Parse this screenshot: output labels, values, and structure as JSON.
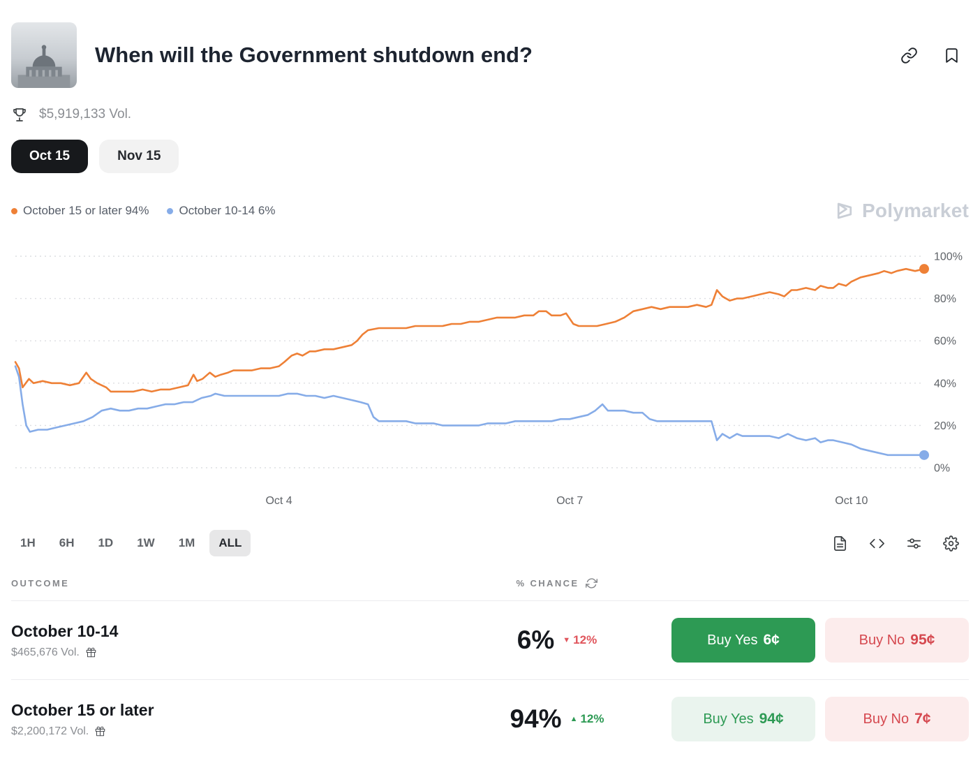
{
  "header": {
    "title": "When will the Government shutdown end?",
    "volume": "$5,919,133 Vol."
  },
  "tabs": [
    {
      "label": "Oct 15"
    },
    {
      "label": "Nov 15"
    }
  ],
  "legend": {
    "items": [
      {
        "label": "October 15 or later 94%"
      },
      {
        "label": "October 10-14 6%"
      }
    ]
  },
  "watermark": "Polymarket",
  "chart_data": {
    "type": "line",
    "ylim": [
      0,
      100
    ],
    "yticks": [
      0,
      20,
      40,
      60,
      80,
      100
    ],
    "xticks": [
      {
        "x": 29,
        "label": "Oct 4"
      },
      {
        "x": 61,
        "label": "Oct 7"
      },
      {
        "x": 92,
        "label": "Oct 10"
      }
    ],
    "grid": "dotted-horizontal",
    "legend_position": "top-left",
    "series": [
      {
        "name": "October 15 or later",
        "color": "#EE8036",
        "points": [
          [
            0,
            50
          ],
          [
            0.4,
            47
          ],
          [
            0.8,
            38
          ],
          [
            1.5,
            42
          ],
          [
            2,
            40
          ],
          [
            3,
            41
          ],
          [
            4,
            40
          ],
          [
            5,
            40
          ],
          [
            6,
            39
          ],
          [
            7,
            40
          ],
          [
            7.8,
            45
          ],
          [
            8.3,
            42
          ],
          [
            9,
            40
          ],
          [
            10,
            38
          ],
          [
            10.5,
            36
          ],
          [
            11.5,
            36
          ],
          [
            13,
            36
          ],
          [
            14,
            37
          ],
          [
            15,
            36
          ],
          [
            16,
            37
          ],
          [
            17,
            37
          ],
          [
            18,
            38
          ],
          [
            19,
            39
          ],
          [
            19.6,
            44
          ],
          [
            20,
            41
          ],
          [
            20.6,
            42
          ],
          [
            21.4,
            45
          ],
          [
            22,
            43
          ],
          [
            22.6,
            44
          ],
          [
            23.4,
            45
          ],
          [
            24,
            46
          ],
          [
            25,
            46
          ],
          [
            26,
            46
          ],
          [
            27,
            47
          ],
          [
            28,
            47
          ],
          [
            29,
            48
          ],
          [
            29.6,
            50
          ],
          [
            30.4,
            53
          ],
          [
            31,
            54
          ],
          [
            31.6,
            53
          ],
          [
            32.4,
            55
          ],
          [
            33,
            55
          ],
          [
            34,
            56
          ],
          [
            35,
            56
          ],
          [
            36,
            57
          ],
          [
            37,
            58
          ],
          [
            37.6,
            60
          ],
          [
            38.2,
            63
          ],
          [
            38.8,
            65
          ],
          [
            40,
            66
          ],
          [
            41,
            66
          ],
          [
            42,
            66
          ],
          [
            43,
            66
          ],
          [
            44,
            67
          ],
          [
            45,
            67
          ],
          [
            46,
            67
          ],
          [
            47,
            67
          ],
          [
            48,
            68
          ],
          [
            49,
            68
          ],
          [
            50,
            69
          ],
          [
            51,
            69
          ],
          [
            52,
            70
          ],
          [
            53,
            71
          ],
          [
            54,
            71
          ],
          [
            55,
            71
          ],
          [
            56,
            72
          ],
          [
            57,
            72
          ],
          [
            57.6,
            74
          ],
          [
            58.4,
            74
          ],
          [
            59,
            72
          ],
          [
            60,
            72
          ],
          [
            60.6,
            73
          ],
          [
            61.4,
            68
          ],
          [
            62,
            67
          ],
          [
            63,
            67
          ],
          [
            64,
            67
          ],
          [
            65,
            68
          ],
          [
            66,
            69
          ],
          [
            67,
            71
          ],
          [
            68,
            74
          ],
          [
            69,
            75
          ],
          [
            70,
            76
          ],
          [
            71,
            75
          ],
          [
            72,
            76
          ],
          [
            73,
            76
          ],
          [
            74,
            76
          ],
          [
            75,
            77
          ],
          [
            76,
            76
          ],
          [
            76.6,
            77
          ],
          [
            77.2,
            84
          ],
          [
            77.8,
            81
          ],
          [
            78.6,
            79
          ],
          [
            79.4,
            80
          ],
          [
            80,
            80
          ],
          [
            81,
            81
          ],
          [
            82,
            82
          ],
          [
            83,
            83
          ],
          [
            84,
            82
          ],
          [
            84.6,
            81
          ],
          [
            85.4,
            84
          ],
          [
            86,
            84
          ],
          [
            87,
            85
          ],
          [
            88,
            84
          ],
          [
            88.6,
            86
          ],
          [
            89.4,
            85
          ],
          [
            90,
            85
          ],
          [
            90.6,
            87
          ],
          [
            91.4,
            86
          ],
          [
            92,
            88
          ],
          [
            93,
            90
          ],
          [
            94,
            91
          ],
          [
            95,
            92
          ],
          [
            95.6,
            93
          ],
          [
            96.4,
            92
          ],
          [
            97,
            93
          ],
          [
            98,
            94
          ],
          [
            99,
            93
          ],
          [
            100,
            94
          ]
        ]
      },
      {
        "name": "October 10-14",
        "color": "#86ACE8",
        "points": [
          [
            0,
            48
          ],
          [
            0.4,
            43
          ],
          [
            0.8,
            30
          ],
          [
            1.2,
            20
          ],
          [
            1.6,
            17
          ],
          [
            2.5,
            18
          ],
          [
            3.5,
            18
          ],
          [
            4.5,
            19
          ],
          [
            5.5,
            20
          ],
          [
            6.5,
            21
          ],
          [
            7.5,
            22
          ],
          [
            8.5,
            24
          ],
          [
            9.5,
            27
          ],
          [
            10.5,
            28
          ],
          [
            11.5,
            27
          ],
          [
            12.5,
            27
          ],
          [
            13.5,
            28
          ],
          [
            14.5,
            28
          ],
          [
            15.5,
            29
          ],
          [
            16.5,
            30
          ],
          [
            17.5,
            30
          ],
          [
            18.5,
            31
          ],
          [
            19.5,
            31
          ],
          [
            20.5,
            33
          ],
          [
            21.5,
            34
          ],
          [
            22,
            35
          ],
          [
            23,
            34
          ],
          [
            24,
            34
          ],
          [
            25,
            34
          ],
          [
            26,
            34
          ],
          [
            27,
            34
          ],
          [
            28,
            34
          ],
          [
            29,
            34
          ],
          [
            30,
            35
          ],
          [
            31,
            35
          ],
          [
            32,
            34
          ],
          [
            33,
            34
          ],
          [
            34,
            33
          ],
          [
            35,
            34
          ],
          [
            36,
            33
          ],
          [
            37,
            32
          ],
          [
            38,
            31
          ],
          [
            38.8,
            30
          ],
          [
            39.4,
            24
          ],
          [
            40,
            22
          ],
          [
            41,
            22
          ],
          [
            42,
            22
          ],
          [
            43,
            22
          ],
          [
            44,
            21
          ],
          [
            45,
            21
          ],
          [
            46,
            21
          ],
          [
            47,
            20
          ],
          [
            48,
            20
          ],
          [
            49,
            20
          ],
          [
            50,
            20
          ],
          [
            51,
            20
          ],
          [
            52,
            21
          ],
          [
            53,
            21
          ],
          [
            54,
            21
          ],
          [
            55,
            22
          ],
          [
            56,
            22
          ],
          [
            57,
            22
          ],
          [
            58,
            22
          ],
          [
            59,
            22
          ],
          [
            60,
            23
          ],
          [
            61,
            23
          ],
          [
            62,
            24
          ],
          [
            63,
            25
          ],
          [
            63.8,
            27
          ],
          [
            64.6,
            30
          ],
          [
            65.2,
            27
          ],
          [
            66,
            27
          ],
          [
            67,
            27
          ],
          [
            68,
            26
          ],
          [
            69,
            26
          ],
          [
            69.8,
            23
          ],
          [
            70.6,
            22
          ],
          [
            71.4,
            22
          ],
          [
            72,
            22
          ],
          [
            73,
            22
          ],
          [
            74,
            22
          ],
          [
            75,
            22
          ],
          [
            76,
            22
          ],
          [
            76.6,
            22
          ],
          [
            77.2,
            13
          ],
          [
            77.8,
            16
          ],
          [
            78.6,
            14
          ],
          [
            79.4,
            16
          ],
          [
            80,
            15
          ],
          [
            81,
            15
          ],
          [
            82,
            15
          ],
          [
            83,
            15
          ],
          [
            84,
            14
          ],
          [
            85,
            16
          ],
          [
            86,
            14
          ],
          [
            87,
            13
          ],
          [
            88,
            14
          ],
          [
            88.6,
            12
          ],
          [
            89.4,
            13
          ],
          [
            90,
            13
          ],
          [
            91,
            12
          ],
          [
            92,
            11
          ],
          [
            93,
            9
          ],
          [
            94,
            8
          ],
          [
            95,
            7
          ],
          [
            96,
            6
          ],
          [
            97,
            6
          ],
          [
            98,
            6
          ],
          [
            99,
            6
          ],
          [
            100,
            6
          ]
        ]
      }
    ]
  },
  "controls": {
    "ranges": [
      "1H",
      "6H",
      "1D",
      "1W",
      "1M",
      "ALL"
    ],
    "active_range": "ALL"
  },
  "table": {
    "outcome_header": "OUTCOME",
    "chance_header": "% CHANCE",
    "rows": [
      {
        "outcome": "October 10-14",
        "volume": "$465,676 Vol.",
        "chance": "6%",
        "change": "12%",
        "change_arrow": "▼",
        "buy_yes": {
          "label": "Buy Yes",
          "price": "6¢"
        },
        "buy_no": {
          "label": "Buy No",
          "price": "95¢"
        }
      },
      {
        "outcome": "October 15 or later",
        "volume": "$2,200,172 Vol.",
        "chance": "94%",
        "change": "12%",
        "change_arrow": "▲",
        "buy_yes": {
          "label": "Buy Yes",
          "price": "94¢"
        },
        "buy_no": {
          "label": "Buy No",
          "price": "7¢"
        }
      }
    ]
  }
}
